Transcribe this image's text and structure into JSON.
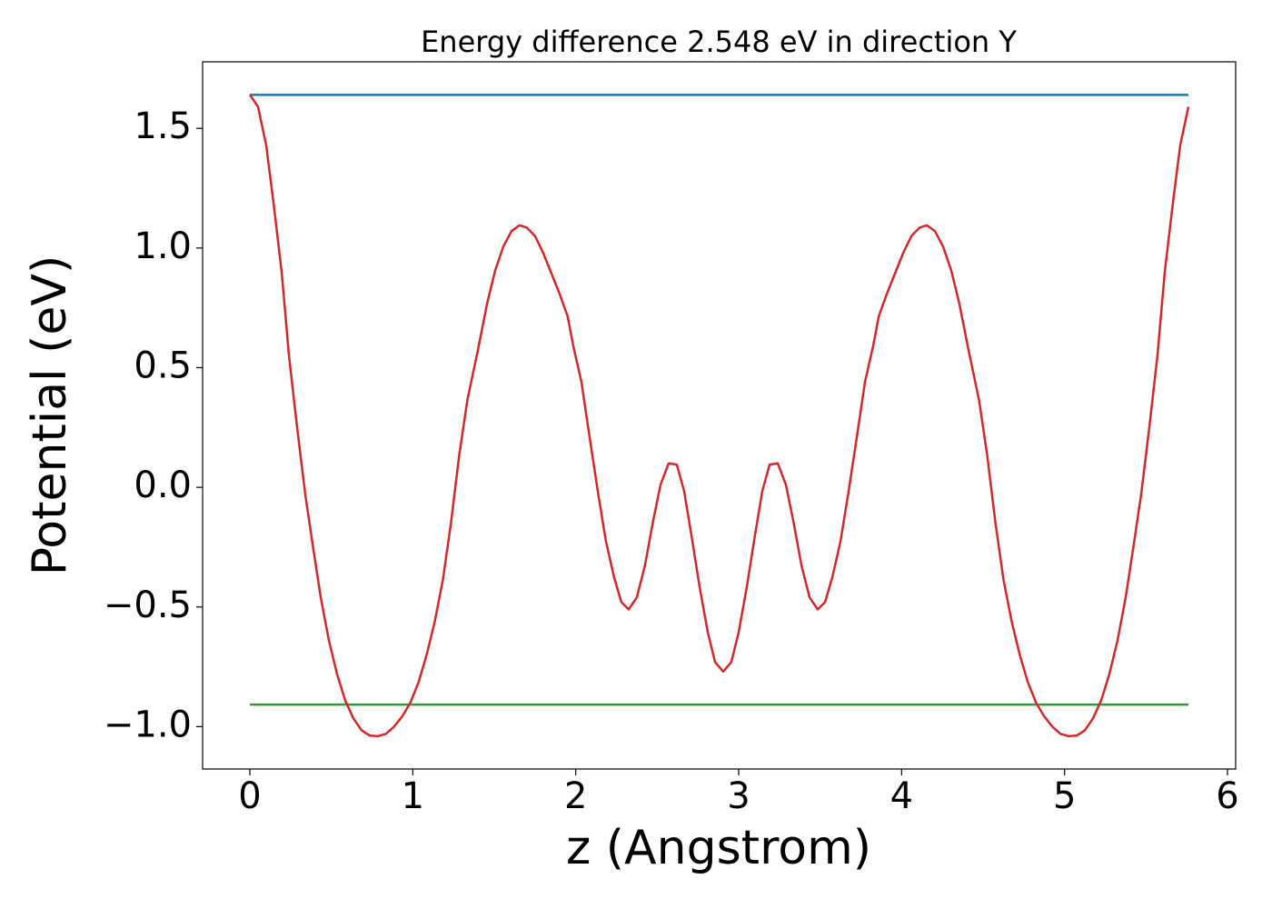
{
  "chart_data": {
    "type": "line",
    "title": "Energy difference 2.548 eV in direction Y",
    "xlabel": "z (Angstrom)",
    "ylabel": "Potential (eV)",
    "xlim": [
      -0.29,
      6.05
    ],
    "ylim": [
      -1.177,
      1.778
    ],
    "xticks": [
      0,
      1,
      2,
      3,
      4,
      5,
      6
    ],
    "yticks": [
      {
        "value": -1.0,
        "label": "−1.0"
      },
      {
        "value": -0.5,
        "label": "−0.5"
      },
      {
        "value": 0.0,
        "label": "0.0"
      },
      {
        "value": 0.5,
        "label": "0.5"
      },
      {
        "value": 1.0,
        "label": "1.0"
      },
      {
        "value": 1.5,
        "label": "1.5"
      }
    ],
    "grid": false,
    "series": [
      {
        "color": "#1f77b4",
        "x": [
          0,
          5.76
        ],
        "values": [
          1.64,
          1.64
        ]
      },
      {
        "color": "#2ca02c",
        "x": [
          0,
          5.76
        ],
        "values": [
          -0.908,
          -0.908
        ]
      },
      {
        "color": "#d62728",
        "x": [
          0,
          0.05,
          0.1,
          0.145,
          0.195,
          0.24,
          0.29,
          0.34,
          0.39,
          0.435,
          0.485,
          0.535,
          0.585,
          0.635,
          0.685,
          0.735,
          0.785,
          0.835,
          0.885,
          0.935,
          0.985,
          1.035,
          1.085,
          1.135,
          1.185,
          1.235,
          1.285,
          1.335,
          1.4,
          1.455,
          1.505,
          1.555,
          1.605,
          1.655,
          1.7,
          1.75,
          1.8,
          1.85,
          1.9,
          1.95,
          1.985,
          2.035,
          2.085,
          2.135,
          2.185,
          2.235,
          2.28,
          2.325,
          2.375,
          2.425,
          2.475,
          2.52,
          2.57,
          2.62,
          2.665,
          2.71,
          2.76,
          2.81,
          2.855,
          2.905,
          2.955,
          3.0,
          3.05,
          3.1,
          3.145,
          3.19,
          3.24,
          3.29,
          3.335,
          3.385,
          3.435,
          3.485,
          3.53,
          3.575,
          3.625,
          3.675,
          3.725,
          3.775,
          3.825,
          3.86,
          3.91,
          3.96,
          4.01,
          4.06,
          4.11,
          4.155,
          4.205,
          4.255,
          4.305,
          4.355,
          4.41,
          4.475,
          4.525,
          4.575,
          4.625,
          4.675,
          4.725,
          4.775,
          4.825,
          4.875,
          4.925,
          4.975,
          5.025,
          5.075,
          5.125,
          5.175,
          5.225,
          5.275,
          5.325,
          5.375,
          5.42,
          5.47,
          5.52,
          5.57,
          5.615,
          5.665,
          5.71,
          5.76
        ],
        "values": [
          1.64,
          1.59,
          1.43,
          1.19,
          0.9,
          0.55,
          0.25,
          -0.03,
          -0.26,
          -0.46,
          -0.64,
          -0.78,
          -0.89,
          -0.965,
          -1.015,
          -1.037,
          -1.04,
          -1.03,
          -1.0,
          -0.957,
          -0.9,
          -0.815,
          -0.7,
          -0.56,
          -0.385,
          -0.145,
          0.135,
          0.365,
          0.575,
          0.765,
          0.905,
          1.005,
          1.07,
          1.095,
          1.085,
          1.05,
          0.98,
          0.895,
          0.81,
          0.715,
          0.59,
          0.44,
          0.21,
          -0.015,
          -0.225,
          -0.375,
          -0.48,
          -0.51,
          -0.46,
          -0.325,
          -0.14,
          0.01,
          0.1,
          0.095,
          -0.015,
          -0.2,
          -0.415,
          -0.605,
          -0.73,
          -0.77,
          -0.73,
          -0.605,
          -0.415,
          -0.2,
          -0.015,
          0.095,
          0.1,
          0.01,
          -0.14,
          -0.325,
          -0.46,
          -0.51,
          -0.48,
          -0.375,
          -0.225,
          -0.015,
          0.21,
          0.44,
          0.59,
          0.715,
          0.81,
          0.895,
          0.98,
          1.05,
          1.085,
          1.095,
          1.07,
          1.005,
          0.905,
          0.765,
          0.575,
          0.365,
          0.135,
          -0.145,
          -0.385,
          -0.56,
          -0.7,
          -0.815,
          -0.9,
          -0.957,
          -1.0,
          -1.03,
          -1.04,
          -1.037,
          -1.015,
          -0.965,
          -0.89,
          -0.78,
          -0.64,
          -0.46,
          -0.26,
          -0.03,
          0.25,
          0.55,
          0.9,
          1.19,
          1.43,
          1.59
        ]
      }
    ]
  }
}
